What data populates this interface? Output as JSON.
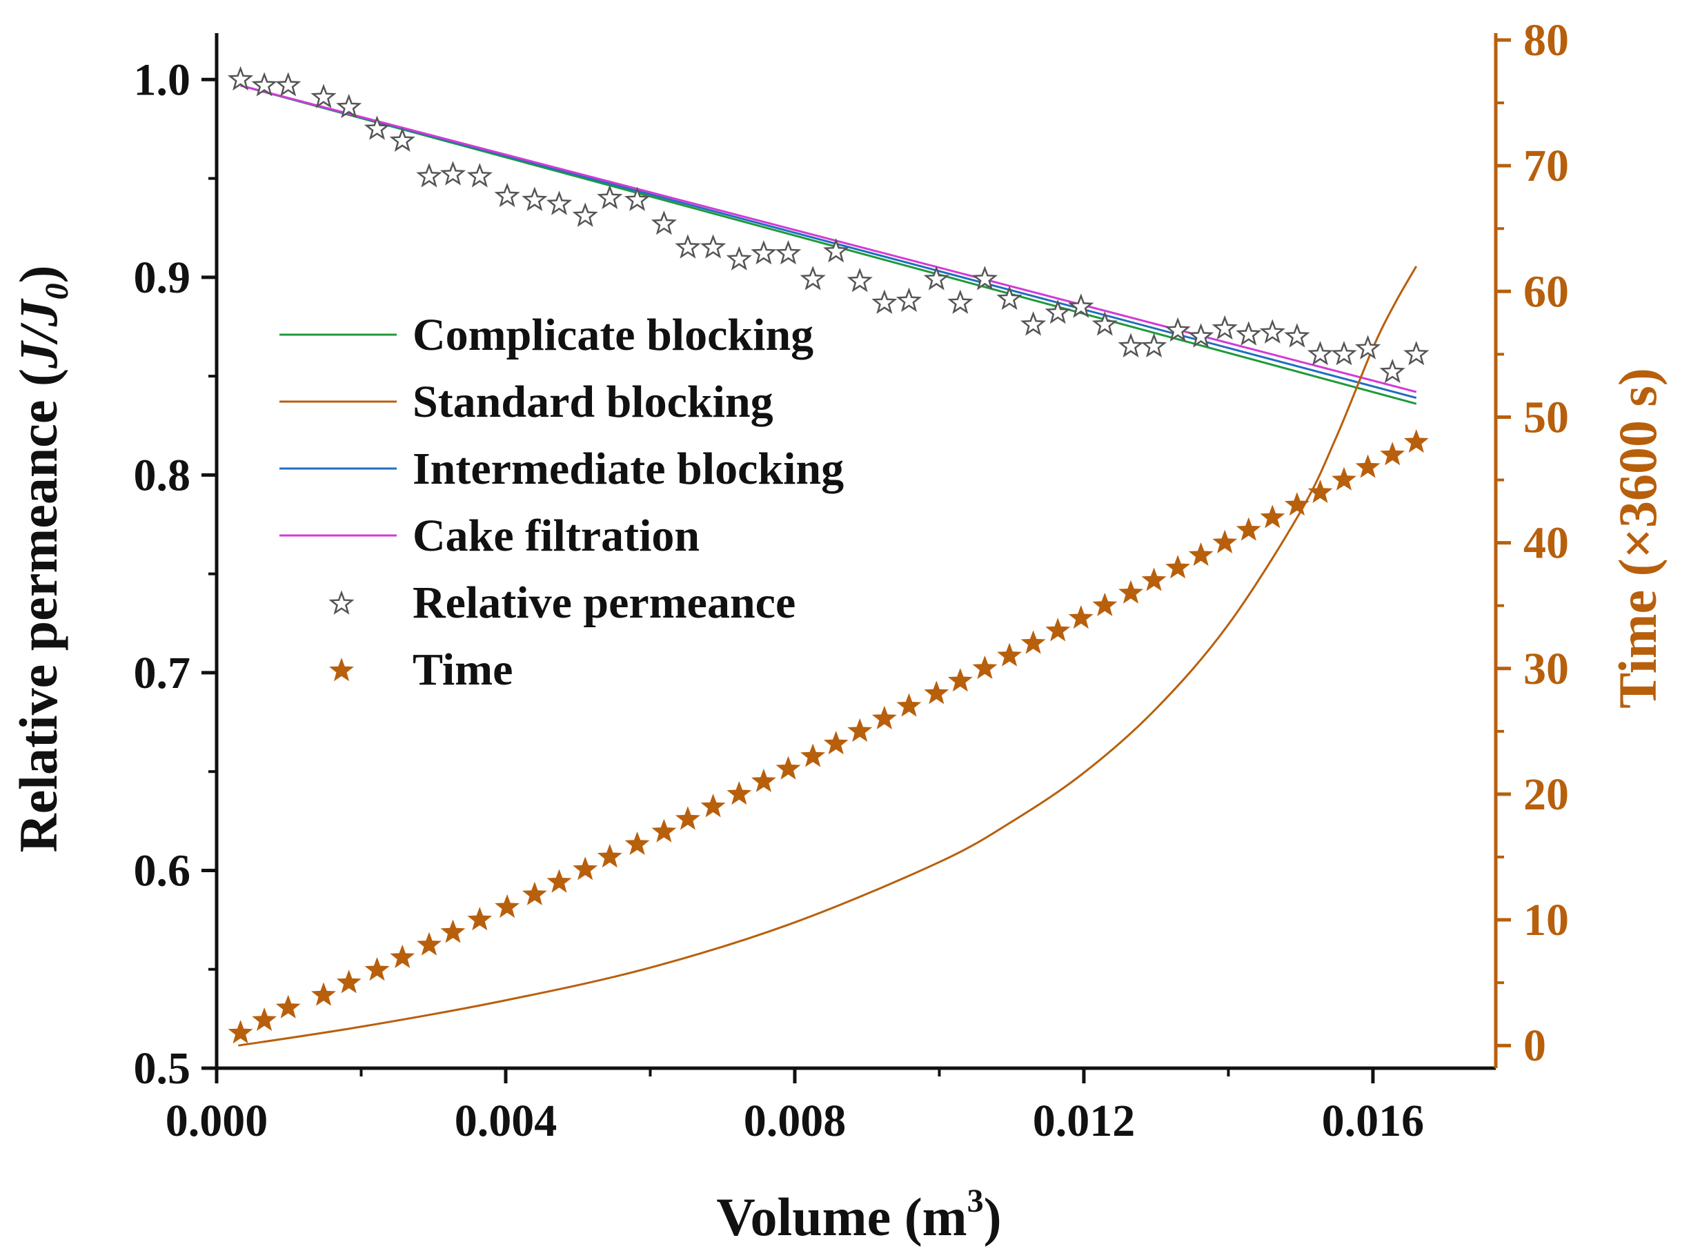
{
  "chart_data": {
    "type": "line",
    "title": "",
    "xlabel": "Volume (m",
    "xlabel_sup": "3",
    "xlabel_tail": ")",
    "ylabel": "Relative permeance (",
    "ylabel_var": "J/J",
    "ylabel_sub": "0",
    "ylabel_tail": ")",
    "y2label": "Time (×3600 s)",
    "xlim": [
      0.0,
      0.0177
    ],
    "ylim": [
      0.5,
      1.02
    ],
    "y2lim": [
      -1.8,
      80
    ],
    "x_ticks": [
      0.0,
      0.004,
      0.008,
      0.012,
      0.016
    ],
    "x_tick_labels": [
      "0.000",
      "0.004",
      "0.008",
      "0.012",
      "0.016"
    ],
    "y_ticks": [
      0.5,
      0.6,
      0.7,
      0.8,
      0.9,
      1.0
    ],
    "y_tick_labels": [
      "0.5",
      "0.6",
      "0.7",
      "0.8",
      "0.9",
      "1.0"
    ],
    "y2_ticks": [
      0,
      10,
      20,
      30,
      40,
      50,
      60,
      70,
      80
    ],
    "y2_tick_labels": [
      "0",
      "10",
      "20",
      "30",
      "40",
      "50",
      "60",
      "70",
      "80"
    ],
    "colors": {
      "complicate": "#1e9a3a",
      "standard": "#b85f0c",
      "intermediate": "#1f6fbf",
      "cake": "#d43ad6",
      "permeance_marker": "#555555",
      "time_marker": "#b85f0c",
      "right_axis": "#b85f0c",
      "axis": "#111111"
    },
    "legend": [
      {
        "label": "Complicate blocking",
        "kind": "line",
        "color_key": "complicate"
      },
      {
        "label": "Standard blocking",
        "kind": "line",
        "color_key": "standard"
      },
      {
        "label": "Intermediate blocking",
        "kind": "line",
        "color_key": "intermediate"
      },
      {
        "label": "Cake filtration",
        "kind": "line",
        "color_key": "cake"
      },
      {
        "label": "Relative permeance",
        "kind": "open-star",
        "color_key": "permeance_marker"
      },
      {
        "label": "Time",
        "kind": "filled-star",
        "color_key": "time_marker"
      }
    ],
    "series": [
      {
        "name": "Complicate blocking",
        "axis": "left",
        "color_key": "complicate",
        "x": [
          0.00033,
          0.0166
        ],
        "y": [
          0.997,
          0.836
        ]
      },
      {
        "name": "Intermediate blocking",
        "axis": "left",
        "color_key": "intermediate",
        "x": [
          0.00033,
          0.0166
        ],
        "y": [
          0.997,
          0.839
        ]
      },
      {
        "name": "Cake filtration",
        "axis": "left",
        "color_key": "cake",
        "x": [
          0.00033,
          0.0166
        ],
        "y": [
          0.997,
          0.842
        ]
      },
      {
        "name": "Standard blocking",
        "axis": "right",
        "color_key": "standard",
        "x": [
          0.0003,
          0.002,
          0.004,
          0.006,
          0.008,
          0.01,
          0.011,
          0.012,
          0.013,
          0.014,
          0.015,
          0.0155,
          0.016,
          0.0163,
          0.0166
        ],
        "y": [
          0.0,
          1.5,
          3.6,
          6.2,
          9.8,
          14.6,
          17.8,
          21.7,
          26.8,
          33.5,
          42.5,
          48.5,
          55.5,
          59.0,
          62.0
        ]
      },
      {
        "name": "Relative permeance",
        "axis": "left",
        "marker": "open-star",
        "color_key": "permeance_marker",
        "x": [
          0.00033,
          0.00066,
          0.00099,
          0.00148,
          0.00183,
          0.00222,
          0.00257,
          0.00294,
          0.00327,
          0.00364,
          0.00402,
          0.0044,
          0.00474,
          0.0051,
          0.00544,
          0.00582,
          0.00619,
          0.00652,
          0.00687,
          0.00723,
          0.00757,
          0.00791,
          0.00825,
          0.00857,
          0.0089,
          0.00924,
          0.00958,
          0.00996,
          0.01029,
          0.01063,
          0.01097,
          0.0113,
          0.01164,
          0.01196,
          0.01229,
          0.01265,
          0.01297,
          0.0133,
          0.01362,
          0.01395,
          0.01428,
          0.01461,
          0.01495,
          0.01527,
          0.0156,
          0.01593,
          0.01627,
          0.0166
        ],
        "y": [
          1.0,
          0.997,
          0.997,
          0.991,
          0.986,
          0.975,
          0.969,
          0.951,
          0.952,
          0.951,
          0.941,
          0.939,
          0.937,
          0.931,
          0.94,
          0.939,
          0.927,
          0.915,
          0.915,
          0.909,
          0.912,
          0.912,
          0.899,
          0.913,
          0.898,
          0.887,
          0.888,
          0.899,
          0.887,
          0.899,
          0.889,
          0.876,
          0.882,
          0.885,
          0.876,
          0.865,
          0.865,
          0.873,
          0.87,
          0.874,
          0.871,
          0.872,
          0.87,
          0.861,
          0.861,
          0.864,
          0.852,
          0.861
        ]
      },
      {
        "name": "Time",
        "axis": "right",
        "marker": "filled-star",
        "color_key": "time_marker",
        "x": [
          0.00033,
          0.00066,
          0.00099,
          0.00148,
          0.00183,
          0.00222,
          0.00257,
          0.00294,
          0.00327,
          0.00364,
          0.00402,
          0.0044,
          0.00474,
          0.0051,
          0.00544,
          0.00582,
          0.00619,
          0.00652,
          0.00687,
          0.00723,
          0.00757,
          0.00791,
          0.00825,
          0.00857,
          0.0089,
          0.00924,
          0.00958,
          0.00996,
          0.01029,
          0.01063,
          0.01097,
          0.0113,
          0.01164,
          0.01196,
          0.01229,
          0.01265,
          0.01297,
          0.0133,
          0.01362,
          0.01395,
          0.01428,
          0.01461,
          0.01495,
          0.01527,
          0.0156,
          0.01593,
          0.01627,
          0.0166
        ],
        "y": [
          1,
          2,
          3,
          4,
          5,
          6,
          7,
          8,
          9,
          10,
          11,
          12,
          13,
          14,
          15,
          16,
          17,
          18,
          19,
          20,
          21,
          22,
          23,
          24,
          25,
          26,
          27,
          28,
          29,
          30,
          31,
          32,
          33,
          34,
          35,
          36,
          37,
          38,
          39,
          40,
          41,
          42,
          43,
          44,
          45,
          46,
          47,
          48
        ]
      }
    ]
  }
}
